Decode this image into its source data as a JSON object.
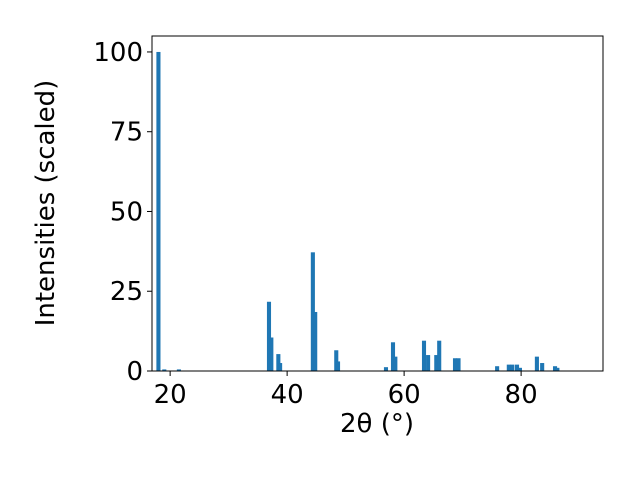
{
  "chart_data": {
    "type": "bar",
    "x_label": "2θ (°)",
    "y_label": "Intensities (scaled)",
    "color": "#1f77b4",
    "x": [
      18.0,
      19.0,
      21.5,
      36.9,
      37.3,
      38.5,
      38.8,
      44.4,
      44.8,
      48.4,
      48.7,
      56.9,
      58.1,
      58.5,
      63.4,
      64.1,
      65.5,
      66.0,
      68.7,
      69.3,
      75.9,
      77.9,
      78.5,
      79.3,
      79.8,
      82.7,
      83.6,
      85.8,
      86.2
    ],
    "values": [
      100,
      0.5,
      0.5,
      21.7,
      10.5,
      5.3,
      2.5,
      37.2,
      18.5,
      6.5,
      3,
      1.2,
      9,
      4.5,
      9.5,
      5,
      5,
      9.5,
      4,
      4,
      1.5,
      2,
      2,
      2,
      1,
      4.5,
      2.5,
      1.5,
      1
    ],
    "xlim": [
      16.9,
      94.0
    ],
    "ylim": [
      0,
      105
    ],
    "xticks": [
      20,
      40,
      60,
      80
    ],
    "yticks": [
      0,
      25,
      50,
      75,
      100
    ]
  }
}
